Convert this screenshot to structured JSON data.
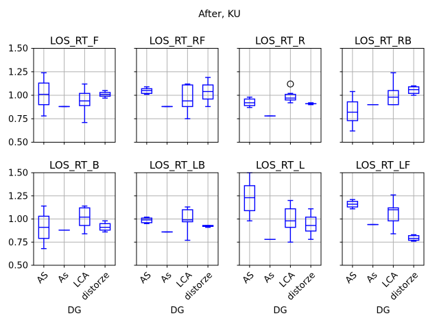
{
  "chart_data": {
    "type": "boxplot",
    "title": "After, KU",
    "layout": {
      "rows": 2,
      "cols": 4,
      "legend": "none",
      "grid_on": true
    },
    "categories": [
      "AS",
      "As",
      "LCA",
      "distorze"
    ],
    "xlabel": "DG",
    "ylabel": "",
    "ylim": [
      0.5,
      1.5
    ],
    "yticks": [
      0.5,
      0.75,
      1.0,
      1.25,
      1.5
    ],
    "ytick_labels": [
      "0.50",
      "0.75",
      "1.00",
      "1.25",
      "1.50"
    ],
    "colors": {
      "box": "#0000ff",
      "median": "#0000ff",
      "whisker": "#0000ff",
      "outlier_edge": "#000000",
      "gridline": "#b0b0b0",
      "axis": "#000000",
      "text": "#000000",
      "background": "#ffffff"
    },
    "subplots": [
      {
        "title": "LOS_RT_F",
        "boxes": [
          {
            "category": "AS",
            "whislo": 0.78,
            "q1": 0.9,
            "med": 1.01,
            "q3": 1.13,
            "whishi": 1.24,
            "fliers": []
          },
          {
            "category": "As",
            "whislo": 0.88,
            "q1": 0.88,
            "med": 0.88,
            "q3": 0.88,
            "whishi": 0.88,
            "fliers": []
          },
          {
            "category": "LCA",
            "whislo": 0.71,
            "q1": 0.89,
            "med": 0.94,
            "q3": 1.02,
            "whishi": 1.12,
            "fliers": []
          },
          {
            "category": "distorze",
            "whislo": 0.97,
            "q1": 0.99,
            "med": 1.01,
            "q3": 1.03,
            "whishi": 1.05,
            "fliers": []
          }
        ]
      },
      {
        "title": "LOS_RT_RF",
        "boxes": [
          {
            "category": "AS",
            "whislo": 1.01,
            "q1": 1.02,
            "med": 1.05,
            "q3": 1.07,
            "whishi": 1.09,
            "fliers": []
          },
          {
            "category": "As",
            "whislo": 0.88,
            "q1": 0.88,
            "med": 0.88,
            "q3": 0.88,
            "whishi": 0.88,
            "fliers": []
          },
          {
            "category": "LCA",
            "whislo": 0.75,
            "q1": 0.88,
            "med": 0.94,
            "q3": 1.11,
            "whishi": 1.12,
            "fliers": []
          },
          {
            "category": "distorze",
            "whislo": 0.88,
            "q1": 0.96,
            "med": 1.04,
            "q3": 1.11,
            "whishi": 1.19,
            "fliers": []
          }
        ]
      },
      {
        "title": "LOS_RT_R",
        "boxes": [
          {
            "category": "AS",
            "whislo": 0.87,
            "q1": 0.89,
            "med": 0.92,
            "q3": 0.96,
            "whishi": 0.98,
            "fliers": []
          },
          {
            "category": "As",
            "whislo": 0.78,
            "q1": 0.78,
            "med": 0.78,
            "q3": 0.78,
            "whishi": 0.78,
            "fliers": []
          },
          {
            "category": "LCA",
            "whislo": 0.92,
            "q1": 0.95,
            "med": 0.97,
            "q3": 1.01,
            "whishi": 1.02,
            "fliers": [
              1.12
            ]
          },
          {
            "category": "distorze",
            "whislo": 0.9,
            "q1": 0.91,
            "med": 0.91,
            "q3": 0.91,
            "whishi": 0.92,
            "fliers": []
          }
        ]
      },
      {
        "title": "LOS_RT_RB",
        "boxes": [
          {
            "category": "AS",
            "whislo": 0.62,
            "q1": 0.73,
            "med": 0.82,
            "q3": 0.93,
            "whishi": 1.04,
            "fliers": []
          },
          {
            "category": "As",
            "whislo": 0.9,
            "q1": 0.9,
            "med": 0.9,
            "q3": 0.9,
            "whishi": 0.9,
            "fliers": []
          },
          {
            "category": "LCA",
            "whislo": 0.9,
            "q1": 0.9,
            "med": 0.98,
            "q3": 1.05,
            "whishi": 1.24,
            "fliers": []
          },
          {
            "category": "distorze",
            "whislo": 1.0,
            "q1": 1.02,
            "med": 1.06,
            "q3": 1.09,
            "whishi": 1.1,
            "fliers": []
          }
        ]
      },
      {
        "title": "LOS_RT_B",
        "boxes": [
          {
            "category": "AS",
            "whislo": 0.68,
            "q1": 0.79,
            "med": 0.91,
            "q3": 1.03,
            "whishi": 1.14,
            "fliers": []
          },
          {
            "category": "As",
            "whislo": 0.88,
            "q1": 0.88,
            "med": 0.88,
            "q3": 0.88,
            "whishi": 0.88,
            "fliers": []
          },
          {
            "category": "LCA",
            "whislo": 0.84,
            "q1": 0.93,
            "med": 1.02,
            "q3": 1.12,
            "whishi": 1.14,
            "fliers": []
          },
          {
            "category": "distorze",
            "whislo": 0.86,
            "q1": 0.88,
            "med": 0.91,
            "q3": 0.95,
            "whishi": 0.98,
            "fliers": []
          }
        ]
      },
      {
        "title": "LOS_RT_LB",
        "boxes": [
          {
            "category": "AS",
            "whislo": 0.95,
            "q1": 0.96,
            "med": 0.99,
            "q3": 1.01,
            "whishi": 1.02,
            "fliers": []
          },
          {
            "category": "As",
            "whislo": 0.86,
            "q1": 0.86,
            "med": 0.86,
            "q3": 0.86,
            "whishi": 0.86,
            "fliers": []
          },
          {
            "category": "LCA",
            "whislo": 0.77,
            "q1": 0.97,
            "med": 0.99,
            "q3": 1.1,
            "whishi": 1.13,
            "fliers": []
          },
          {
            "category": "distorze",
            "whislo": 0.91,
            "q1": 0.92,
            "med": 0.92,
            "q3": 0.93,
            "whishi": 0.93,
            "fliers": []
          }
        ]
      },
      {
        "title": "LOS_RT_L",
        "boxes": [
          {
            "category": "AS",
            "whislo": 0.98,
            "q1": 1.09,
            "med": 1.23,
            "q3": 1.36,
            "whishi": 1.5,
            "fliers": []
          },
          {
            "category": "As",
            "whislo": 0.78,
            "q1": 0.78,
            "med": 0.78,
            "q3": 0.78,
            "whishi": 0.78,
            "fliers": []
          },
          {
            "category": "LCA",
            "whislo": 0.75,
            "q1": 0.91,
            "med": 0.98,
            "q3": 1.11,
            "whishi": 1.2,
            "fliers": []
          },
          {
            "category": "distorze",
            "whislo": 0.78,
            "q1": 0.87,
            "med": 0.93,
            "q3": 1.02,
            "whishi": 1.11,
            "fliers": []
          }
        ]
      },
      {
        "title": "LOS_RT_LF",
        "boxes": [
          {
            "category": "AS",
            "whislo": 1.11,
            "q1": 1.13,
            "med": 1.16,
            "q3": 1.19,
            "whishi": 1.21,
            "fliers": []
          },
          {
            "category": "As",
            "whislo": 0.94,
            "q1": 0.94,
            "med": 0.94,
            "q3": 0.94,
            "whishi": 0.94,
            "fliers": []
          },
          {
            "category": "LCA",
            "whislo": 0.84,
            "q1": 0.98,
            "med": 1.1,
            "q3": 1.12,
            "whishi": 1.26,
            "fliers": []
          },
          {
            "category": "distorze",
            "whislo": 0.76,
            "q1": 0.77,
            "med": 0.79,
            "q3": 0.82,
            "whishi": 0.83,
            "fliers": []
          }
        ]
      }
    ]
  }
}
